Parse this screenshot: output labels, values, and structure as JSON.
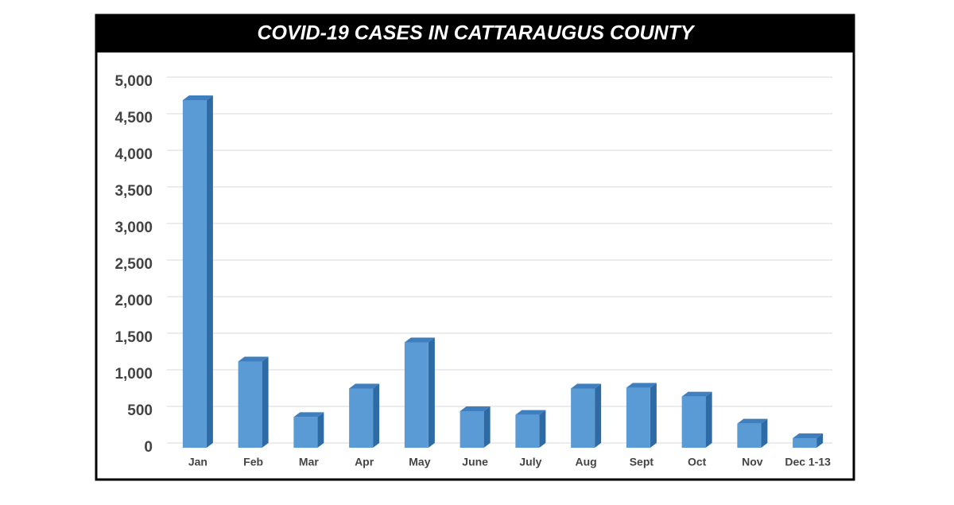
{
  "chart_data": {
    "type": "bar",
    "title": "COVID-19 CASES IN CATTARAUGUS COUNTY",
    "categories": [
      "Jan",
      "Feb",
      "Mar",
      "Apr",
      "May",
      "June",
      "July",
      "Aug",
      "Sept",
      "Oct",
      "Nov",
      "Dec 1-13"
    ],
    "values": [
      4750,
      1180,
      420,
      810,
      1440,
      500,
      450,
      810,
      820,
      700,
      330,
      130
    ],
    "color": "#5b9bd5",
    "ylim": [
      0,
      5000
    ],
    "yticks": [
      0,
      500,
      {
        "value": 1000,
        "label": "1,000"
      },
      {
        "value": 1500,
        "label": "1,500"
      },
      {
        "value": 2000,
        "label": "2,000"
      },
      {
        "value": 2500,
        "label": "2,500"
      },
      {
        "value": 3000,
        "label": "3,000"
      },
      {
        "value": 3500,
        "label": "3,500"
      },
      {
        "value": 4000,
        "label": "4,000"
      },
      {
        "value": 4500,
        "label": "4,500"
      },
      {
        "value": 5000,
        "label": "5,000"
      }
    ],
    "grid": true
  }
}
